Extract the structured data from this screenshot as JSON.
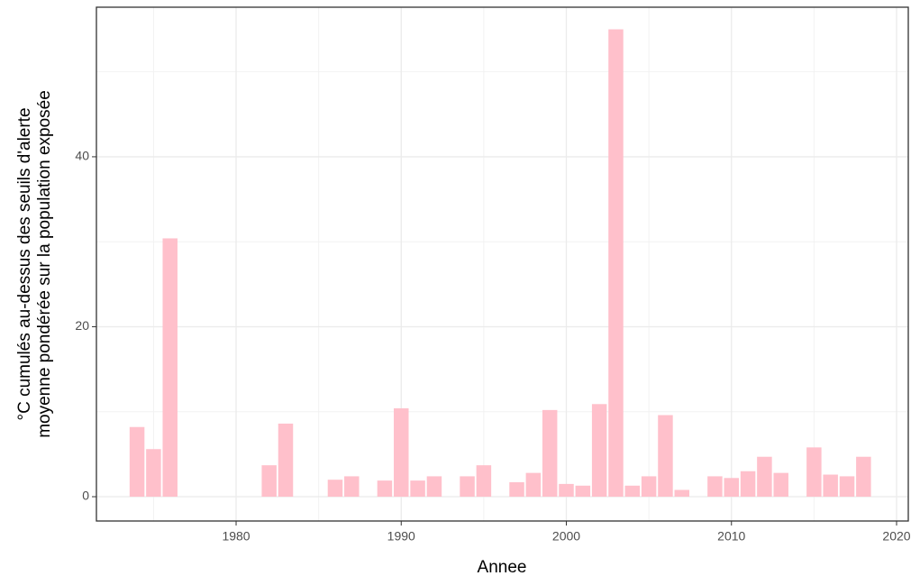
{
  "chart_data": {
    "type": "bar",
    "x_label": "Annee",
    "y_label": [
      "°C cumulés au-dessus des seuils d'alerte",
      "moyenne pondérée sur la population exposée"
    ],
    "x": [
      1974,
      1975,
      1976,
      1982,
      1983,
      1986,
      1987,
      1989,
      1990,
      1991,
      1992,
      1994,
      1995,
      1997,
      1998,
      1999,
      2000,
      2001,
      2002,
      2003,
      2004,
      2005,
      2006,
      2007,
      2009,
      2010,
      2011,
      2012,
      2013,
      2015,
      2016,
      2017,
      2018
    ],
    "values": [
      8.2,
      5.6,
      30.4,
      3.7,
      8.6,
      2.0,
      2.4,
      1.9,
      10.4,
      1.9,
      2.4,
      2.4,
      3.7,
      1.7,
      2.8,
      10.2,
      1.5,
      1.3,
      10.9,
      55.0,
      1.3,
      2.4,
      9.6,
      0.8,
      2.4,
      2.2,
      3.0,
      4.7,
      2.8,
      5.8,
      2.6,
      2.4,
      4.7
    ],
    "bar_width": 0.9,
    "color": "#ffc0cb",
    "xlim": [
      1971.54,
      2020.71
    ],
    "xticks": [
      1980,
      1990,
      2000,
      2010,
      2020
    ],
    "x_minor_ticks": [
      1975,
      1985,
      1995,
      2005,
      2015
    ],
    "ylim": [
      -2.86,
      57.6
    ],
    "yticks": [
      0,
      20,
      40
    ],
    "y_minor_ticks": [
      10,
      30,
      50
    ],
    "grid": true
  }
}
